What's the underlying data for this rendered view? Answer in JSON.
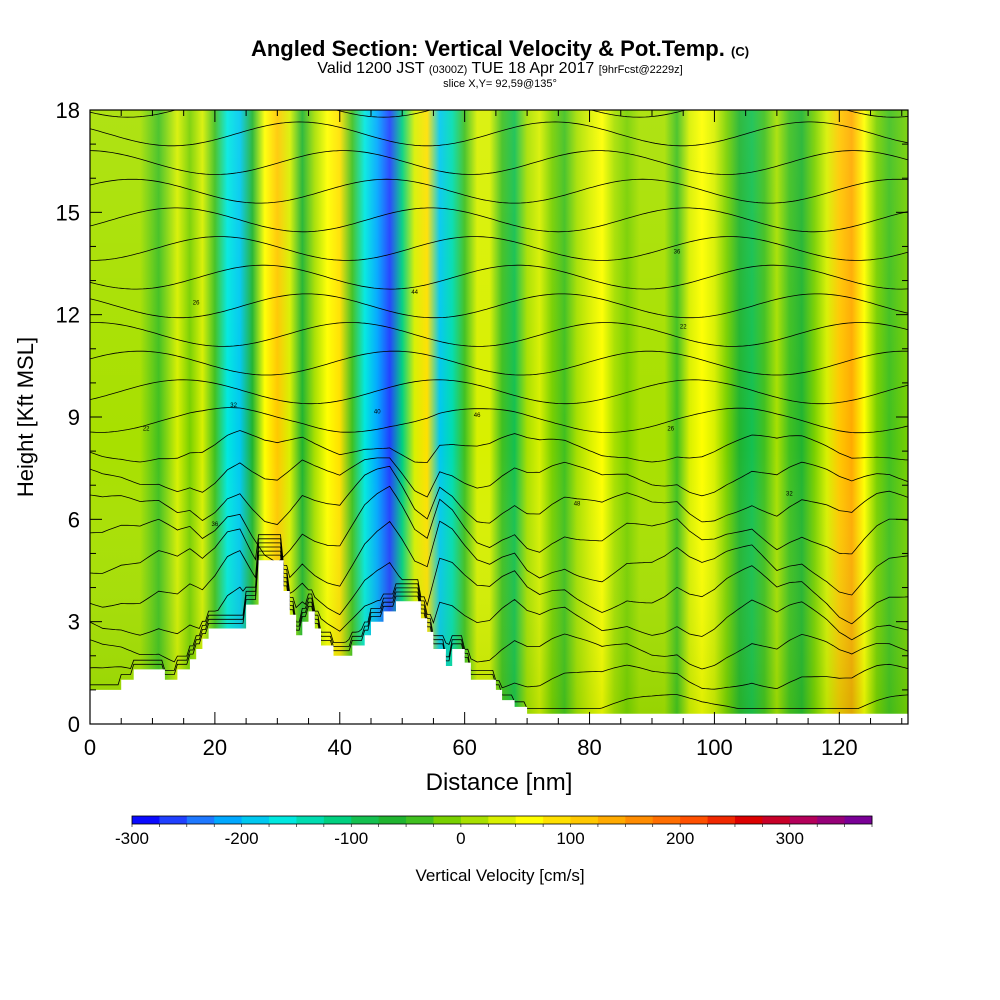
{
  "title": {
    "main": "Angled Section: Vertical Velocity & Pot.Temp.",
    "main_unit": "(C)",
    "valid_prefix": "Valid 1200 JST",
    "valid_utc": "(0300Z)",
    "valid_date": "TUE 18 Apr 2017",
    "forecast": "[9hrFcst@2229z]",
    "slice": "slice X,Y= 92,59@135°"
  },
  "chart_data": {
    "type": "heatmap",
    "title": "Angled Section: Vertical Velocity & Pot.Temp. (C)",
    "xlabel": "Distance [nm]",
    "ylabel": "Height [Kft MSL]",
    "xlim": [
      0,
      131
    ],
    "ylim": [
      0,
      18
    ],
    "x_ticks": [
      0,
      20,
      40,
      60,
      80,
      100,
      120
    ],
    "y_ticks": [
      0,
      3,
      6,
      9,
      12,
      15,
      18
    ],
    "colorbar": {
      "label": "Vertical Velocity [cm/s]",
      "ticks": [
        -300,
        -200,
        -100,
        0,
        100,
        200,
        300
      ],
      "range": [
        -300,
        375
      ],
      "step": 25,
      "colors": [
        "#0a0aff",
        "#2040ff",
        "#1e78ff",
        "#00a8ff",
        "#00c8f0",
        "#00e8e0",
        "#00dcb0",
        "#00d080",
        "#14c050",
        "#20b430",
        "#40c020",
        "#78d000",
        "#a8e000",
        "#d8f000",
        "#ffff00",
        "#ffe000",
        "#ffc800",
        "#ffaa00",
        "#ff8c00",
        "#ff6e00",
        "#ff5000",
        "#f02800",
        "#dc0000",
        "#c80028",
        "#b4005a",
        "#960078",
        "#7a0096"
      ]
    },
    "columns": [
      {
        "x": 0,
        "w": 0
      },
      {
        "x": 2,
        "w": 20
      },
      {
        "x": 5,
        "w": 0
      },
      {
        "x": 8,
        "w": 20
      },
      {
        "x": 11,
        "w": -30
      },
      {
        "x": 14,
        "w": 25
      },
      {
        "x": 16,
        "w": -20
      },
      {
        "x": 18,
        "w": 40
      },
      {
        "x": 20,
        "w": -40
      },
      {
        "x": 22,
        "w": -160
      },
      {
        "x": 24,
        "w": -200
      },
      {
        "x": 26,
        "w": -60
      },
      {
        "x": 28,
        "w": 60
      },
      {
        "x": 30,
        "w": 110
      },
      {
        "x": 32,
        "w": 30
      },
      {
        "x": 34,
        "w": -70
      },
      {
        "x": 36,
        "w": 0
      },
      {
        "x": 38,
        "w": 50
      },
      {
        "x": 40,
        "w": 80
      },
      {
        "x": 42,
        "w": -40
      },
      {
        "x": 44,
        "w": -160
      },
      {
        "x": 46,
        "w": -220
      },
      {
        "x": 48,
        "w": -260
      },
      {
        "x": 50,
        "w": -120
      },
      {
        "x": 52,
        "w": 40
      },
      {
        "x": 54,
        "w": 90
      },
      {
        "x": 56,
        "w": -200
      },
      {
        "x": 58,
        "w": -150
      },
      {
        "x": 60,
        "w": -50
      },
      {
        "x": 62,
        "w": 30
      },
      {
        "x": 64,
        "w": 40
      },
      {
        "x": 66,
        "w": -30
      },
      {
        "x": 68,
        "w": -80
      },
      {
        "x": 70,
        "w": 10
      },
      {
        "x": 72,
        "w": 40
      },
      {
        "x": 74,
        "w": -10
      },
      {
        "x": 76,
        "w": -40
      },
      {
        "x": 78,
        "w": 0
      },
      {
        "x": 80,
        "w": 30
      },
      {
        "x": 82,
        "w": 60
      },
      {
        "x": 84,
        "w": 20
      },
      {
        "x": 86,
        "w": -20
      },
      {
        "x": 88,
        "w": 0
      },
      {
        "x": 90,
        "w": 20
      },
      {
        "x": 92,
        "w": 0
      },
      {
        "x": 94,
        "w": -40
      },
      {
        "x": 96,
        "w": 30
      },
      {
        "x": 98,
        "w": 70
      },
      {
        "x": 100,
        "w": 40
      },
      {
        "x": 102,
        "w": -20
      },
      {
        "x": 104,
        "w": -60
      },
      {
        "x": 106,
        "w": -100
      },
      {
        "x": 108,
        "w": -40
      },
      {
        "x": 110,
        "w": 20
      },
      {
        "x": 112,
        "w": -30
      },
      {
        "x": 114,
        "w": -60
      },
      {
        "x": 116,
        "w": -10
      },
      {
        "x": 118,
        "w": 40
      },
      {
        "x": 120,
        "w": 110
      },
      {
        "x": 122,
        "w": 140
      },
      {
        "x": 124,
        "w": 60
      },
      {
        "x": 126,
        "w": -10
      },
      {
        "x": 128,
        "w": -40
      },
      {
        "x": 131,
        "w": -20
      }
    ],
    "terrain": [
      [
        0,
        1.0
      ],
      [
        5,
        1.0
      ],
      [
        5,
        1.3
      ],
      [
        7,
        1.3
      ],
      [
        7,
        1.6
      ],
      [
        12,
        1.6
      ],
      [
        12,
        1.3
      ],
      [
        14,
        1.3
      ],
      [
        14,
        1.6
      ],
      [
        16,
        1.6
      ],
      [
        16,
        1.9
      ],
      [
        17,
        1.9
      ],
      [
        17,
        2.2
      ],
      [
        18,
        2.2
      ],
      [
        18,
        2.5
      ],
      [
        19,
        2.5
      ],
      [
        19,
        2.8
      ],
      [
        25,
        2.8
      ],
      [
        25,
        3.5
      ],
      [
        27,
        3.5
      ],
      [
        27,
        4.8
      ],
      [
        31,
        4.8
      ],
      [
        31,
        3.9
      ],
      [
        32,
        3.9
      ],
      [
        32,
        3.2
      ],
      [
        33,
        3.2
      ],
      [
        33,
        2.6
      ],
      [
        34,
        2.6
      ],
      [
        34,
        3.0
      ],
      [
        35,
        3.0
      ],
      [
        35,
        3.3
      ],
      [
        36,
        3.3
      ],
      [
        36,
        2.8
      ],
      [
        37,
        2.8
      ],
      [
        37,
        2.3
      ],
      [
        39,
        2.3
      ],
      [
        39,
        2.0
      ],
      [
        42,
        2.0
      ],
      [
        42,
        2.3
      ],
      [
        44,
        2.3
      ],
      [
        44,
        2.6
      ],
      [
        45,
        2.6
      ],
      [
        45,
        3.0
      ],
      [
        47,
        3.0
      ],
      [
        47,
        3.3
      ],
      [
        49,
        3.3
      ],
      [
        49,
        3.6
      ],
      [
        53,
        3.6
      ],
      [
        53,
        3.1
      ],
      [
        54,
        3.1
      ],
      [
        54,
        2.7
      ],
      [
        55,
        2.7
      ],
      [
        55,
        2.2
      ],
      [
        57,
        2.2
      ],
      [
        57,
        1.7
      ],
      [
        58,
        1.7
      ],
      [
        58,
        2.2
      ],
      [
        60,
        2.2
      ],
      [
        60,
        1.8
      ],
      [
        61,
        1.8
      ],
      [
        61,
        1.3
      ],
      [
        65,
        1.3
      ],
      [
        65,
        1.0
      ],
      [
        66,
        1.0
      ],
      [
        66,
        0.7
      ],
      [
        68,
        0.7
      ],
      [
        68,
        0.5
      ],
      [
        70,
        0.5
      ],
      [
        70,
        0.3
      ],
      [
        131,
        0.3
      ]
    ],
    "isentropes_C": [
      6,
      8,
      10,
      12,
      14,
      16,
      18,
      20,
      22,
      24,
      26,
      28,
      30,
      32,
      34,
      36,
      38,
      40,
      42,
      44,
      46,
      48
    ],
    "contour_labels": [
      "22",
      "26",
      "32",
      "36",
      "40",
      "44",
      "46",
      "48"
    ]
  }
}
